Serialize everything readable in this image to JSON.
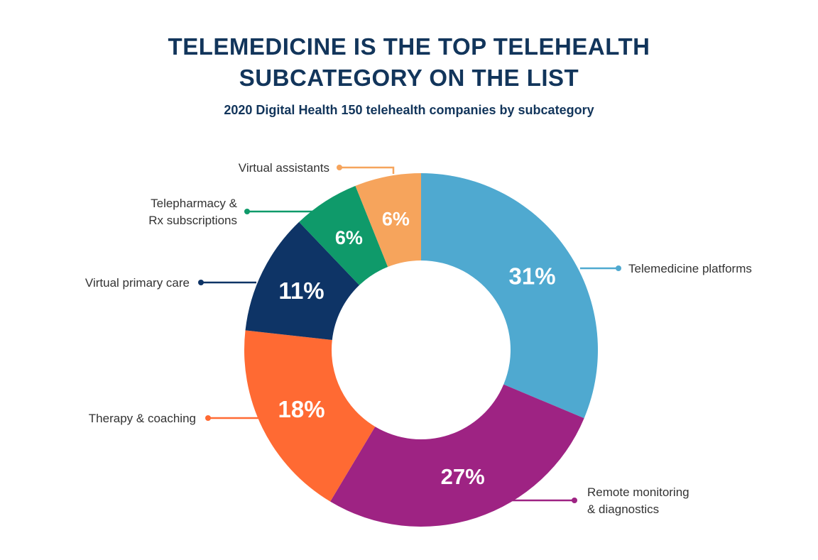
{
  "title": {
    "line1": "TELEMEDICINE IS THE TOP TELEHEALTH",
    "line2": "SUBCATEGORY ON THE LIST"
  },
  "subtitle": "2020 Digital Health 150 telehealth companies by subcategory",
  "chart_data": {
    "type": "pie",
    "donut": true,
    "title": "TELEMEDICINE IS THE TOP TELEHEALTH SUBCATEGORY ON THE LIST",
    "subtitle": "2020 Digital Health 150 telehealth companies by subcategory",
    "unit": "%",
    "slices": [
      {
        "label": "Telemedicine platforms",
        "lines": [
          "Telemedicine platforms"
        ],
        "value": 31,
        "display": "31%",
        "color": "#4fa9d0"
      },
      {
        "label": "Remote monitoring & diagnostics",
        "lines": [
          "Remote monitoring",
          "& diagnostics"
        ],
        "value": 27,
        "display": "27%",
        "color": "#9e2383"
      },
      {
        "label": "Therapy & coaching",
        "lines": [
          "Therapy & coaching"
        ],
        "value": 18,
        "display": "18%",
        "color": "#ff6a33"
      },
      {
        "label": "Virtual primary care",
        "lines": [
          "Virtual primary care"
        ],
        "value": 11,
        "display": "11%",
        "color": "#0e3466"
      },
      {
        "label": "Telepharmacy & Rx subscriptions",
        "lines": [
          "Telepharmacy &",
          "Rx subscriptions"
        ],
        "value": 6,
        "display": "6%",
        "color": "#0f9a6a"
      },
      {
        "label": "Virtual assistants",
        "lines": [
          "Virtual assistants"
        ],
        "value": 6,
        "display": "6%",
        "color": "#f6a45c"
      }
    ]
  }
}
